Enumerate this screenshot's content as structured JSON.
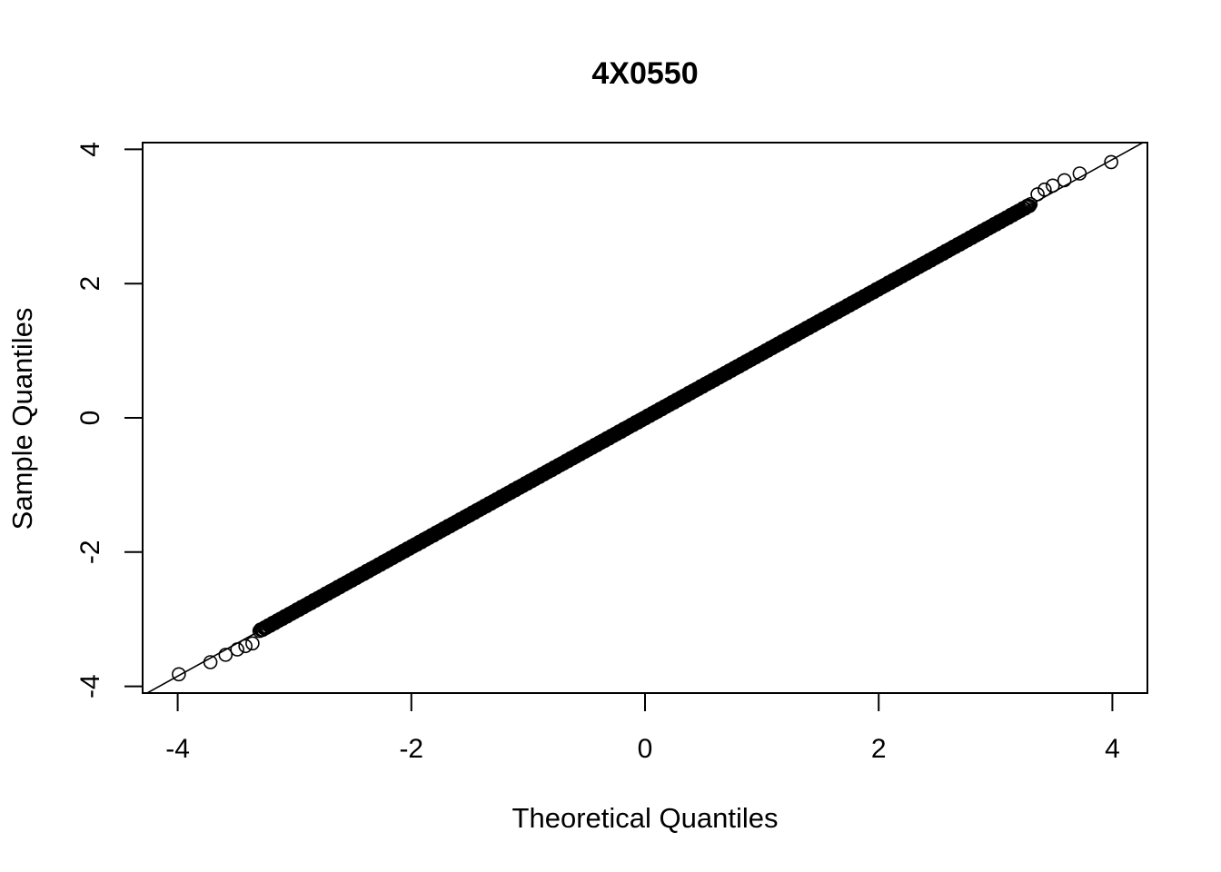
{
  "chart_data": {
    "type": "scatter",
    "title": "4X0550",
    "xlabel": "Theoretical Quantiles",
    "ylabel": "Sample Quantiles",
    "xlim": [
      -4.3,
      4.3
    ],
    "ylim": [
      -4.1,
      4.1
    ],
    "x_ticks": [
      -4,
      -2,
      0,
      2,
      4
    ],
    "y_ticks": [
      -4,
      -2,
      0,
      2,
      4
    ],
    "x_tick_labels": [
      "-4",
      "-2",
      "0",
      "2",
      "4"
    ],
    "y_tick_labels": [
      "-4",
      "-2",
      "0",
      "2",
      "4"
    ],
    "grid": false,
    "reference_line": {
      "slope": 0.962,
      "intercept": 0.0
    },
    "sample_slope": 0.962,
    "x_range": [
      -3.99,
      3.99
    ],
    "dense_count": 700,
    "outliers": [
      {
        "x": -3.99,
        "y": -3.82
      },
      {
        "x": -3.72,
        "y": -3.64
      },
      {
        "x": -3.59,
        "y": -3.53
      },
      {
        "x": -3.49,
        "y": -3.45
      },
      {
        "x": -3.42,
        "y": -3.4
      },
      {
        "x": -3.36,
        "y": -3.36
      },
      {
        "x": 3.36,
        "y": 3.33
      },
      {
        "x": 3.42,
        "y": 3.4
      },
      {
        "x": 3.49,
        "y": 3.46
      },
      {
        "x": 3.59,
        "y": 3.54
      },
      {
        "x": 3.72,
        "y": 3.64
      },
      {
        "x": 3.99,
        "y": 3.81
      }
    ]
  }
}
